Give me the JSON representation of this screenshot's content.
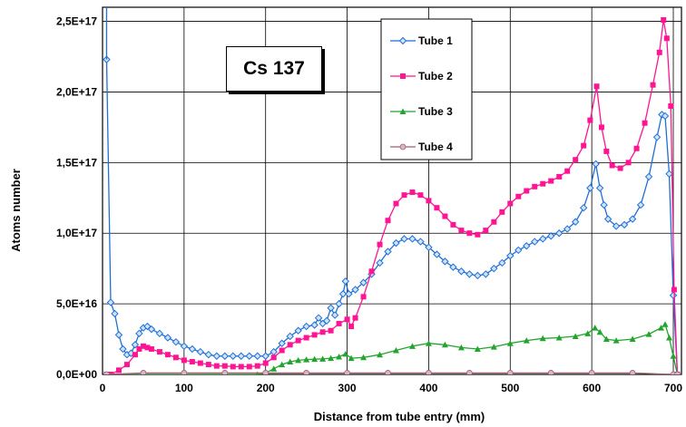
{
  "chart_data": {
    "type": "line",
    "annotation": "Cs 137",
    "xlabel": "Distance from tube entry (mm)",
    "ylabel": "Atoms number",
    "xlim": [
      0,
      710
    ],
    "ylim": [
      0,
      2.6e+17
    ],
    "x_ticks": [
      0,
      100,
      200,
      300,
      400,
      500,
      600,
      700
    ],
    "x_tick_labels": [
      "0",
      "100",
      "200",
      "300",
      "400",
      "500",
      "600",
      "700"
    ],
    "y_ticks": [
      0,
      5e+16,
      1e+17,
      1.5e+17,
      2e+17,
      2.5e+17
    ],
    "y_tick_labels": [
      "0,0E+00",
      "5,0E+16",
      "1,0E+17",
      "1,5E+17",
      "2,0E+17",
      "2,5E+17"
    ],
    "grid": true,
    "legend_position": "top-right",
    "series": [
      {
        "name": "Tube 1",
        "color": "#1f6fd6",
        "marker": "diamond",
        "points": [
          [
            5,
            2.23e+17
          ],
          [
            10,
            5.1e+16
          ],
          [
            15,
            4.3e+16
          ],
          [
            20,
            2.8e+16
          ],
          [
            25,
            1.8e+16
          ],
          [
            30,
            1.4e+16
          ],
          [
            35,
            1.5e+16
          ],
          [
            40,
            2.1e+16
          ],
          [
            45,
            2.9e+16
          ],
          [
            50,
            3.3e+16
          ],
          [
            55,
            3.4e+16
          ],
          [
            60,
            3.2e+16
          ],
          [
            70,
            2.9e+16
          ],
          [
            80,
            2.6e+16
          ],
          [
            90,
            2.3e+16
          ],
          [
            100,
            2e+16
          ],
          [
            110,
            1.8e+16
          ],
          [
            120,
            1.6e+16
          ],
          [
            130,
            1.4e+16
          ],
          [
            140,
            1.3e+16
          ],
          [
            150,
            1.3e+16
          ],
          [
            160,
            1.3e+16
          ],
          [
            170,
            1.3e+16
          ],
          [
            180,
            1.3e+16
          ],
          [
            190,
            1.3e+16
          ],
          [
            200,
            1.3e+16
          ],
          [
            210,
            1.6e+16
          ],
          [
            220,
            2.2e+16
          ],
          [
            230,
            2.7e+16
          ],
          [
            240,
            3.1e+16
          ],
          [
            250,
            3.4e+16
          ],
          [
            260,
            3.5e+16
          ],
          [
            265,
            4e+16
          ],
          [
            270,
            3.6e+16
          ],
          [
            275,
            3.8e+16
          ],
          [
            280,
            4.7e+16
          ],
          [
            285,
            4.2e+16
          ],
          [
            290,
            5e+16
          ],
          [
            295,
            5.7e+16
          ],
          [
            298,
            6.6e+16
          ],
          [
            302,
            5.7e+16
          ],
          [
            310,
            6e+16
          ],
          [
            320,
            6.5e+16
          ],
          [
            330,
            7.1e+16
          ],
          [
            340,
            7.9e+16
          ],
          [
            350,
            8.7e+16
          ],
          [
            360,
            9.3e+16
          ],
          [
            370,
            9.6e+16
          ],
          [
            380,
            9.6e+16
          ],
          [
            390,
            9.4e+16
          ],
          [
            400,
            9e+16
          ],
          [
            410,
            8.5e+16
          ],
          [
            420,
            8e+16
          ],
          [
            430,
            7.6e+16
          ],
          [
            440,
            7.3e+16
          ],
          [
            450,
            7.1e+16
          ],
          [
            460,
            7e+16
          ],
          [
            470,
            7.1e+16
          ],
          [
            480,
            7.5e+16
          ],
          [
            490,
            7.9e+16
          ],
          [
            500,
            8.4e+16
          ],
          [
            510,
            8.8e+16
          ],
          [
            520,
            9.1e+16
          ],
          [
            530,
            9.4e+16
          ],
          [
            540,
            9.6e+16
          ],
          [
            550,
            9.8e+16
          ],
          [
            560,
            1e+17
          ],
          [
            570,
            1.03e+17
          ],
          [
            580,
            1.08e+17
          ],
          [
            590,
            1.18e+17
          ],
          [
            598,
            1.32e+17
          ],
          [
            605,
            1.49e+17
          ],
          [
            610,
            1.32e+17
          ],
          [
            615,
            1.2e+17
          ],
          [
            620,
            1.1e+17
          ],
          [
            630,
            1.05e+17
          ],
          [
            640,
            1.06e+17
          ],
          [
            650,
            1.1e+17
          ],
          [
            660,
            1.2e+17
          ],
          [
            670,
            1.4e+17
          ],
          [
            680,
            1.68e+17
          ],
          [
            686,
            1.84e+17
          ],
          [
            690,
            1.83e+17
          ],
          [
            695,
            1.42e+17
          ],
          [
            700,
            5.6e+16
          ],
          [
            705,
            0
          ]
        ]
      },
      {
        "name": "Tube 2",
        "color": "#ff1493",
        "marker": "square",
        "points": [
          [
            5,
            0
          ],
          [
            10,
            0
          ],
          [
            20,
            3000000000000000.0
          ],
          [
            30,
            7000000000000000.0
          ],
          [
            40,
            1.4e+16
          ],
          [
            45,
            1.8e+16
          ],
          [
            50,
            2e+16
          ],
          [
            55,
            1.9e+16
          ],
          [
            60,
            1.8e+16
          ],
          [
            70,
            1.6e+16
          ],
          [
            80,
            1.4e+16
          ],
          [
            90,
            1.2e+16
          ],
          [
            100,
            1e+16
          ],
          [
            110,
            9000000000000000.0
          ],
          [
            120,
            8000000000000000.0
          ],
          [
            130,
            7000000000000000.0
          ],
          [
            140,
            6000000000000000.0
          ],
          [
            150,
            6000000000000000.0
          ],
          [
            160,
            5500000000000000.0
          ],
          [
            170,
            5500000000000000.0
          ],
          [
            180,
            5500000000000000.0
          ],
          [
            190,
            6000000000000000.0
          ],
          [
            200,
            8000000000000000.0
          ],
          [
            210,
            1.2e+16
          ],
          [
            220,
            1.7e+16
          ],
          [
            230,
            2.1e+16
          ],
          [
            240,
            2.4e+16
          ],
          [
            250,
            2.6e+16
          ],
          [
            260,
            2.8e+16
          ],
          [
            270,
            3e+16
          ],
          [
            280,
            3.1e+16
          ],
          [
            290,
            3.6e+16
          ],
          [
            300,
            3.9e+16
          ],
          [
            305,
            3.4e+16
          ],
          [
            310,
            4e+16
          ],
          [
            320,
            5.5e+16
          ],
          [
            330,
            7.3e+16
          ],
          [
            340,
            9.2e+16
          ],
          [
            350,
            1.09e+17
          ],
          [
            360,
            1.21e+17
          ],
          [
            370,
            1.27e+17
          ],
          [
            380,
            1.29e+17
          ],
          [
            390,
            1.27e+17
          ],
          [
            400,
            1.23e+17
          ],
          [
            410,
            1.18e+17
          ],
          [
            420,
            1.12e+17
          ],
          [
            430,
            1.06e+17
          ],
          [
            440,
            1.02e+17
          ],
          [
            450,
            1e+17
          ],
          [
            460,
            9.9e+16
          ],
          [
            470,
            1.02e+17
          ],
          [
            480,
            1.08e+17
          ],
          [
            490,
            1.15e+17
          ],
          [
            500,
            1.21e+17
          ],
          [
            510,
            1.26e+17
          ],
          [
            520,
            1.3e+17
          ],
          [
            530,
            1.33e+17
          ],
          [
            540,
            1.35e+17
          ],
          [
            550,
            1.37e+17
          ],
          [
            560,
            1.4e+17
          ],
          [
            570,
            1.44e+17
          ],
          [
            580,
            1.52e+17
          ],
          [
            590,
            1.62e+17
          ],
          [
            598,
            1.8e+17
          ],
          [
            606,
            2.04e+17
          ],
          [
            612,
            1.75e+17
          ],
          [
            618,
            1.58e+17
          ],
          [
            625,
            1.48e+17
          ],
          [
            635,
            1.46e+17
          ],
          [
            645,
            1.5e+17
          ],
          [
            655,
            1.6e+17
          ],
          [
            665,
            1.78e+17
          ],
          [
            675,
            2.05e+17
          ],
          [
            683,
            2.28e+17
          ],
          [
            688,
            2.51e+17
          ],
          [
            692,
            2.38e+17
          ],
          [
            697,
            1.9e+17
          ],
          [
            701,
            6e+16
          ],
          [
            705,
            0
          ]
        ]
      },
      {
        "name": "Tube 3",
        "color": "#22a52e",
        "marker": "triangle",
        "points": [
          [
            5,
            0
          ],
          [
            50,
            0
          ],
          [
            100,
            0
          ],
          [
            150,
            0
          ],
          [
            190,
            0
          ],
          [
            200,
            1000000000000000.0
          ],
          [
            210,
            4000000000000000.0
          ],
          [
            220,
            7000000000000000.0
          ],
          [
            230,
            9000000000000000.0
          ],
          [
            240,
            1e+16
          ],
          [
            250,
            1.05e+16
          ],
          [
            260,
            1.08e+16
          ],
          [
            270,
            1.1e+16
          ],
          [
            280,
            1.15e+16
          ],
          [
            290,
            1.25e+16
          ],
          [
            298,
            1.45e+16
          ],
          [
            305,
            1.15e+16
          ],
          [
            320,
            1.2e+16
          ],
          [
            340,
            1.4e+16
          ],
          [
            360,
            1.7e+16
          ],
          [
            380,
            2e+16
          ],
          [
            400,
            2.2e+16
          ],
          [
            420,
            2.1e+16
          ],
          [
            440,
            1.9e+16
          ],
          [
            460,
            1.8e+16
          ],
          [
            480,
            1.95e+16
          ],
          [
            500,
            2.2e+16
          ],
          [
            520,
            2.4e+16
          ],
          [
            540,
            2.55e+16
          ],
          [
            560,
            2.6e+16
          ],
          [
            580,
            2.7e+16
          ],
          [
            595,
            2.9e+16
          ],
          [
            604,
            3.3e+16
          ],
          [
            610,
            3e+16
          ],
          [
            618,
            2.5e+16
          ],
          [
            630,
            2.4e+16
          ],
          [
            650,
            2.5e+16
          ],
          [
            670,
            2.85e+16
          ],
          [
            685,
            3.3e+16
          ],
          [
            690,
            3.55e+16
          ],
          [
            695,
            2.6e+16
          ],
          [
            700,
            1.3e+16
          ],
          [
            705,
            0
          ]
        ]
      },
      {
        "name": "Tube 4",
        "color": "#a0606a",
        "marker": "circle",
        "points": [
          [
            5,
            0
          ],
          [
            50,
            1000000000000000.0
          ],
          [
            100,
            1000000000000000.0
          ],
          [
            150,
            1000000000000000.0
          ],
          [
            200,
            1000000000000000.0
          ],
          [
            250,
            1000000000000000.0
          ],
          [
            300,
            1000000000000000.0
          ],
          [
            350,
            1000000000000000.0
          ],
          [
            400,
            1000000000000000.0
          ],
          [
            450,
            1000000000000000.0
          ],
          [
            500,
            1000000000000000.0
          ],
          [
            550,
            1000000000000000.0
          ],
          [
            600,
            1000000000000000.0
          ],
          [
            650,
            1000000000000000.0
          ],
          [
            700,
            0
          ],
          [
            705,
            0
          ]
        ]
      }
    ]
  }
}
